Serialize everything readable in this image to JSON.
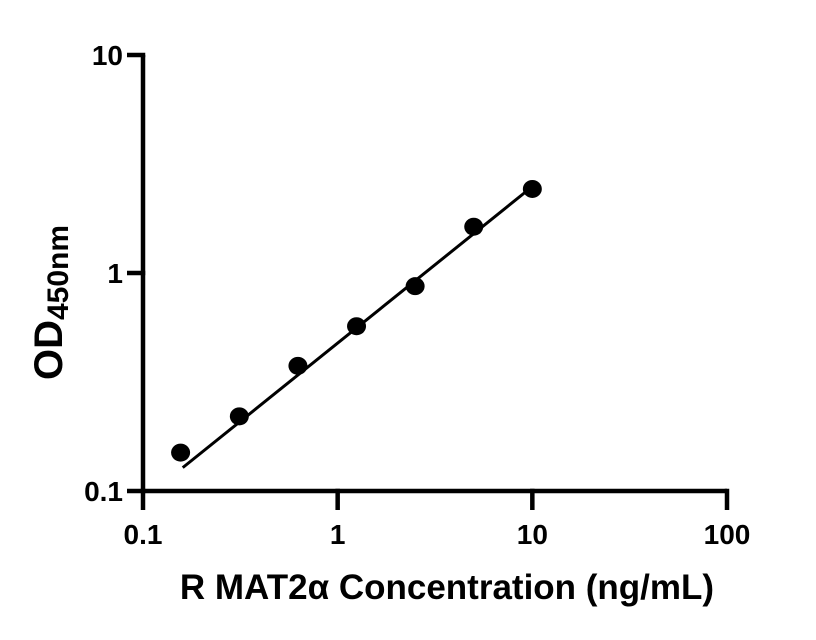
{
  "chart_data": {
    "type": "scatter",
    "xlabel": "R MAT2α Concentration (ng/mL)",
    "ylabel": "OD",
    "ylabel_subscript": "450nm",
    "x_scale": "log",
    "y_scale": "log",
    "xlim": [
      0.1,
      100
    ],
    "ylim": [
      0.1,
      10
    ],
    "x_ticks": [
      {
        "value": 0.1,
        "label": "0.1"
      },
      {
        "value": 1,
        "label": "1"
      },
      {
        "value": 10,
        "label": "10"
      },
      {
        "value": 100,
        "label": "100"
      }
    ],
    "y_ticks": [
      {
        "value": 0.1,
        "label": "0.1"
      },
      {
        "value": 1,
        "label": "1"
      },
      {
        "value": 10,
        "label": "10"
      }
    ],
    "points": [
      {
        "x": 0.156,
        "y": 0.15
      },
      {
        "x": 0.3125,
        "y": 0.22
      },
      {
        "x": 0.625,
        "y": 0.375
      },
      {
        "x": 1.25,
        "y": 0.57
      },
      {
        "x": 2.5,
        "y": 0.87
      },
      {
        "x": 5,
        "y": 1.63
      },
      {
        "x": 10,
        "y": 2.43
      }
    ],
    "fit_line": {
      "x1": 0.16,
      "y1": 0.128,
      "x2": 10.1,
      "y2": 2.51
    },
    "grid": false,
    "legend": null,
    "marker_color": "#000000",
    "line_color": "#000000",
    "axis_color": "#000000",
    "background_color": "#ffffff"
  }
}
